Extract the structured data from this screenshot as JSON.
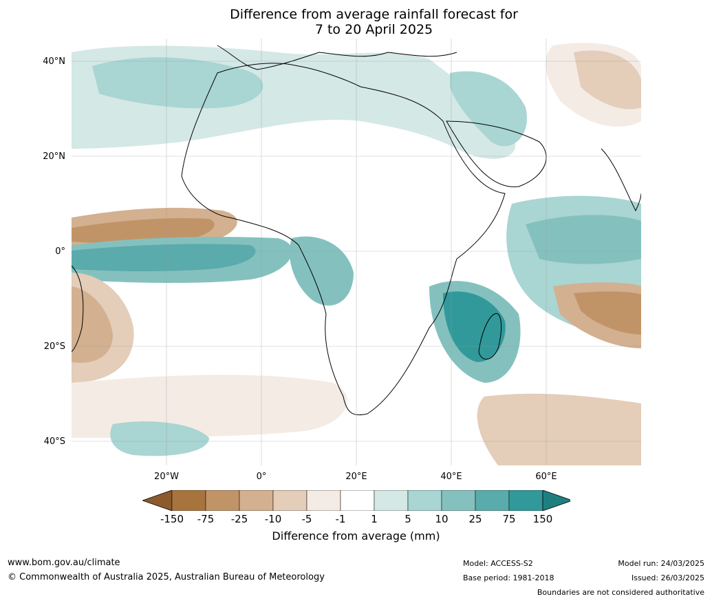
{
  "title": {
    "line1": "Difference from average rainfall forecast for",
    "line2": "7 to 20 April 2025"
  },
  "map": {
    "type": "rainfall anomaly map",
    "region": "Africa and surrounds",
    "latitude_labels": [
      "40°N",
      "20°N",
      "0°",
      "20°S",
      "40°S"
    ],
    "longitude_labels": [
      "20°W",
      "0°",
      "20°E",
      "40°E",
      "60°E"
    ]
  },
  "colorbar": {
    "title": "Difference from average (mm)",
    "ticks": [
      "-150",
      "-75",
      "-25",
      "-10",
      "-5",
      "-1",
      "1",
      "5",
      "10",
      "25",
      "75",
      "150"
    ],
    "colors": [
      "#8c5a2c",
      "#a8743e",
      "#c19468",
      "#d3b08f",
      "#e4cdb9",
      "#f4ebe5",
      "#ffffff",
      "#d4e8e6",
      "#a9d5d2",
      "#84c1be",
      "#5aabab",
      "#32999a",
      "#1f7f80"
    ]
  },
  "footer": {
    "website": "www.bom.gov.au/climate",
    "copyright": "© Commonwealth of Australia 2025, Australian Bureau of Meteorology",
    "model": "Model: ACCESS-S2",
    "base_period": "Base period: 1981-2018",
    "model_run": "Model run: 24/03/2025",
    "issued": "Issued: 26/03/2025",
    "disclaimer": "Boundaries are not considered authoritative"
  }
}
